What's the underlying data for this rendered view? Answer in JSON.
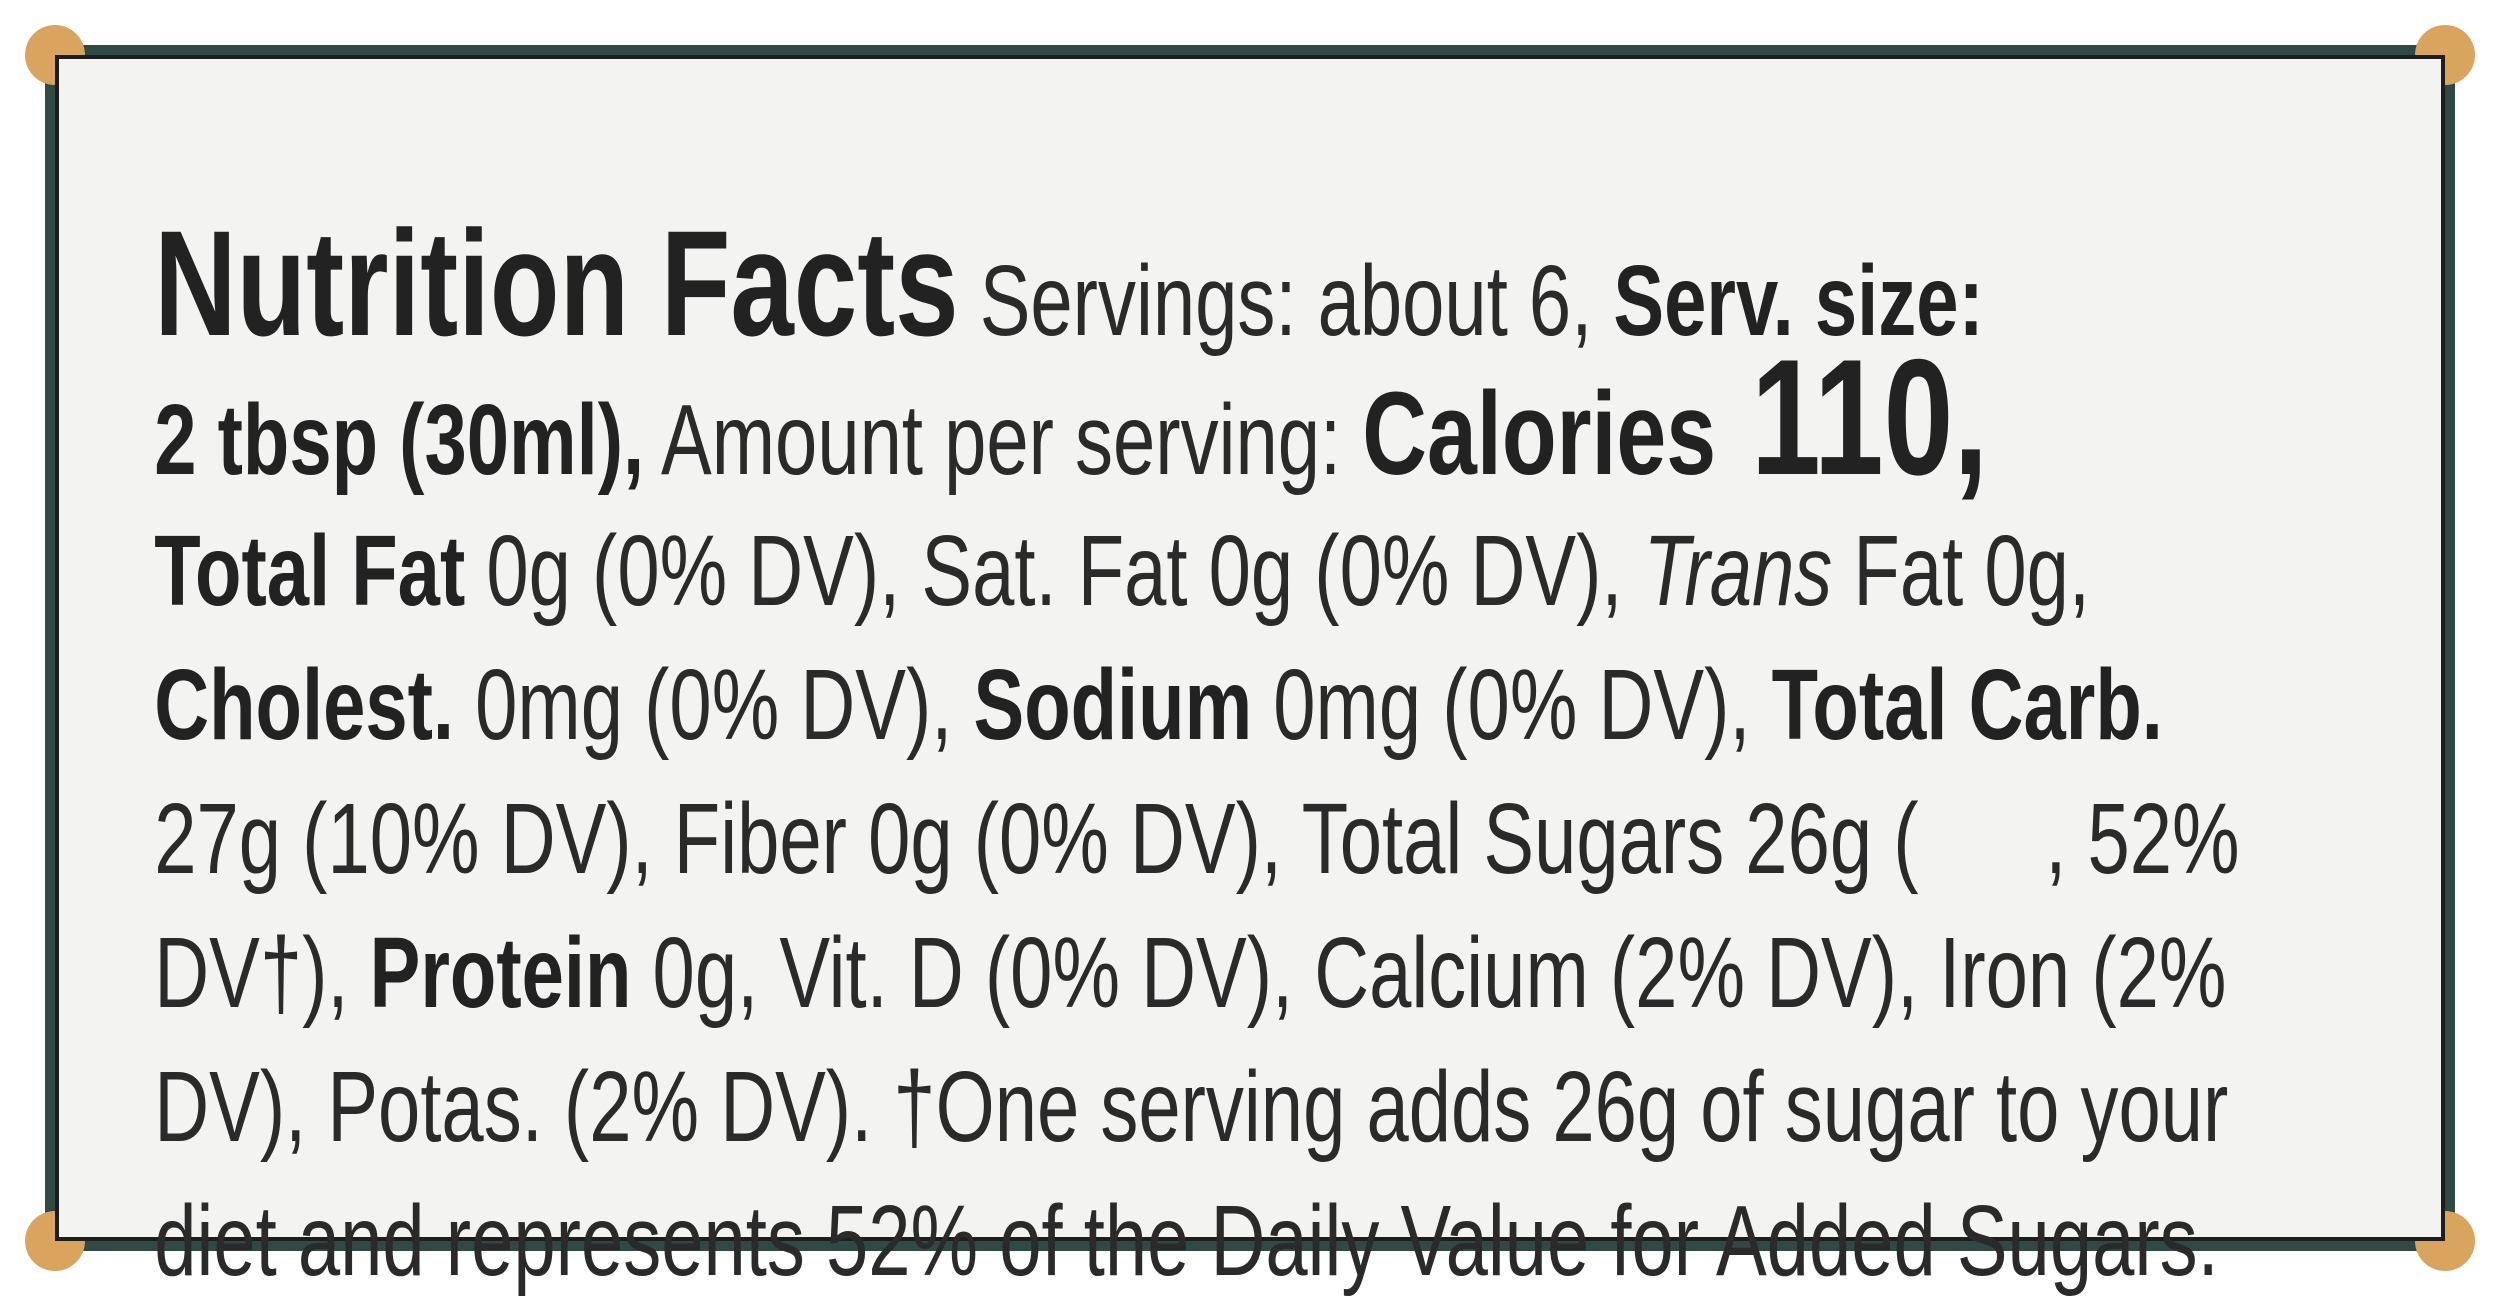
{
  "label": {
    "lines": [
      [
        "Nutrition Facts",
        " Servings: about 6, ",
        "Serv. size:"
      ],
      [
        "2 tbsp (30ml),",
        " Amount per serving: ",
        "Calories",
        " 110,"
      ],
      [
        "Total Fat",
        " 0g (0% DV), Sat. Fat 0g (0% DV), ",
        "Trans",
        " Fat 0g,"
      ],
      [
        "Cholest.",
        " 0mg (0% DV), ",
        "Sodium",
        " 0mg (0% DV), ",
        "Total Carb."
      ],
      [
        "27g (10% DV), Fiber 0g (0% DV), Total Sugars 26g (      , 52%"
      ],
      [
        "DV†), ",
        "Protein",
        " 0g, Vit. D (0% DV), Calcium (2% DV), Iron (2%"
      ],
      [
        "DV), Potas. (2% DV). †One serving adds 26g of sugar to your"
      ],
      [
        "diet and represents 52% of the Daily Value for Added Sugars."
      ]
    ]
  }
}
